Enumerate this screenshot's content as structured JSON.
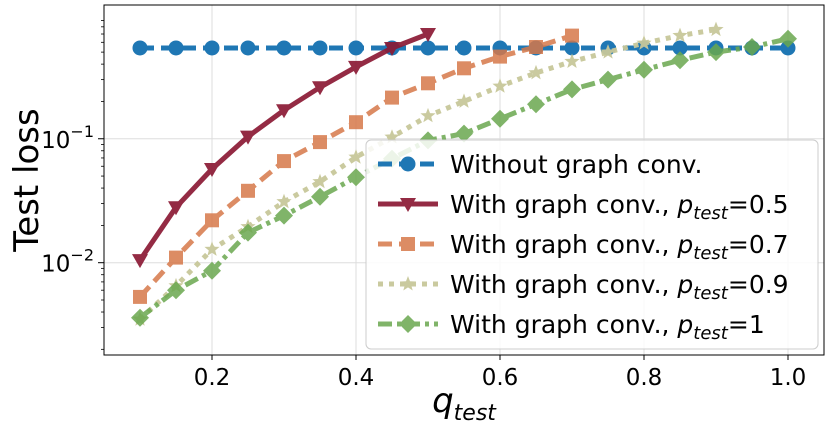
{
  "chart_data": {
    "type": "line",
    "xlabel": "q",
    "xlabel_sub": "test",
    "ylabel": "Test loss",
    "yscale": "log",
    "xlim": [
      0.05,
      1.05
    ],
    "ylim": [
      0.0018,
      1.2
    ],
    "grid": true,
    "legend_position": "lower-right",
    "x_ticks": [
      {
        "value": 0.2,
        "label": "0.2"
      },
      {
        "value": 0.4,
        "label": "0.4"
      },
      {
        "value": 0.6,
        "label": "0.6"
      },
      {
        "value": 0.8,
        "label": "0.8"
      },
      {
        "value": 1.0,
        "label": "1.0"
      }
    ],
    "y_ticks": [
      {
        "value": 0.01,
        "base": "10",
        "exp": "−2"
      },
      {
        "value": 0.1,
        "base": "10",
        "exp": "−1"
      }
    ],
    "series": [
      {
        "name": "Without graph conv.",
        "legend": {
          "prefix": "Without graph conv.",
          "sym": "",
          "sub": "",
          "suffix": ""
        },
        "color": "#1f77b4",
        "marker": "circle",
        "dash": "14,7",
        "opacity": 1,
        "x": [
          0.1,
          0.15,
          0.2,
          0.25,
          0.3,
          0.35,
          0.4,
          0.45,
          0.5,
          0.55,
          0.6,
          0.65,
          0.7,
          0.75,
          0.8,
          0.85,
          0.9,
          0.95,
          1.0
        ],
        "y": [
          0.54,
          0.54,
          0.54,
          0.54,
          0.54,
          0.54,
          0.54,
          0.54,
          0.54,
          0.54,
          0.54,
          0.54,
          0.54,
          0.54,
          0.54,
          0.54,
          0.54,
          0.54,
          0.54
        ]
      },
      {
        "name": "With graph conv., p_test=0.5",
        "legend": {
          "prefix": "With graph conv., ",
          "sym": "p",
          "sub": "test",
          "suffix": "=0.5"
        },
        "color": "#8b1a35",
        "marker": "triangle-down",
        "dash": "",
        "opacity": 0.92,
        "x": [
          0.1,
          0.15,
          0.2,
          0.25,
          0.3,
          0.35,
          0.4,
          0.45,
          0.5
        ],
        "y": [
          0.0105,
          0.028,
          0.057,
          0.104,
          0.17,
          0.26,
          0.38,
          0.54,
          0.7
        ]
      },
      {
        "name": "With graph conv., p_test=0.7",
        "legend": {
          "prefix": "With graph conv., ",
          "sym": "p",
          "sub": "test",
          "suffix": "=0.7"
        },
        "color": "#d6784a",
        "marker": "square",
        "dash": "14,7",
        "opacity": 0.85,
        "x": [
          0.1,
          0.15,
          0.2,
          0.25,
          0.3,
          0.35,
          0.4,
          0.45,
          0.5,
          0.55,
          0.6,
          0.65,
          0.7
        ],
        "y": [
          0.0053,
          0.011,
          0.022,
          0.038,
          0.066,
          0.094,
          0.136,
          0.215,
          0.28,
          0.37,
          0.46,
          0.55,
          0.68
        ]
      },
      {
        "name": "With graph conv., p_test=0.9",
        "legend": {
          "prefix": "With graph conv., ",
          "sym": "p",
          "sub": "test",
          "suffix": "=0.9"
        },
        "color": "#c8c89a",
        "marker": "star",
        "dash": "5,6",
        "opacity": 0.95,
        "x": [
          0.1,
          0.15,
          0.2,
          0.25,
          0.3,
          0.35,
          0.4,
          0.45,
          0.5,
          0.55,
          0.6,
          0.65,
          0.7,
          0.75,
          0.8,
          0.85,
          0.9
        ],
        "y": [
          0.0035,
          0.0065,
          0.0128,
          0.0195,
          0.031,
          0.045,
          0.071,
          0.103,
          0.153,
          0.2,
          0.265,
          0.34,
          0.42,
          0.5,
          0.59,
          0.68,
          0.76
        ]
      },
      {
        "name": "With graph conv., p_test=1",
        "legend": {
          "prefix": "With graph conv., ",
          "sym": "p",
          "sub": "test",
          "suffix": "=1"
        },
        "color": "#6aa84f",
        "marker": "diamond",
        "dash": "14,5,4,5",
        "opacity": 0.85,
        "x": [
          0.1,
          0.15,
          0.2,
          0.25,
          0.3,
          0.35,
          0.4,
          0.45,
          0.5,
          0.55,
          0.6,
          0.65,
          0.7,
          0.75,
          0.8,
          0.85,
          0.9,
          0.95,
          1.0
        ],
        "y": [
          0.0036,
          0.006,
          0.0086,
          0.0175,
          0.024,
          0.034,
          0.049,
          0.069,
          0.097,
          0.11,
          0.145,
          0.19,
          0.25,
          0.3,
          0.36,
          0.43,
          0.5,
          0.55,
          0.64
        ]
      }
    ]
  }
}
